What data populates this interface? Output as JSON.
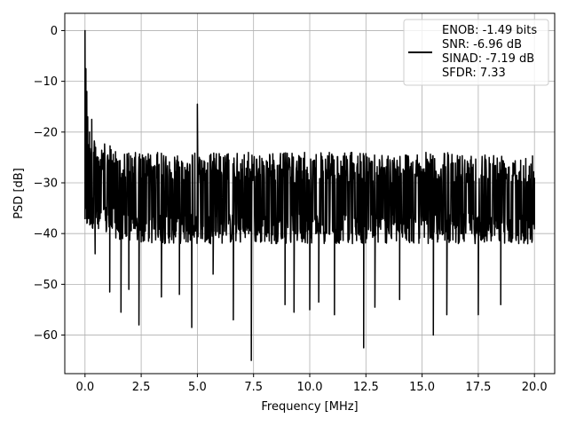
{
  "chart_data": {
    "type": "line",
    "xlabel": "Frequency [MHz]",
    "ylabel": "PSD [dB]",
    "xlim": [
      -0.9,
      20.9
    ],
    "ylim": [
      -67.6,
      3.4
    ],
    "xticks": [
      0.0,
      2.5,
      5.0,
      7.5,
      10.0,
      12.5,
      15.0,
      17.5,
      20.0
    ],
    "xtick_labels": [
      "0.0",
      "2.5",
      "5.0",
      "7.5",
      "10.0",
      "12.5",
      "15.0",
      "17.5",
      "20.0"
    ],
    "yticks": [
      0,
      -10,
      -20,
      -30,
      -40,
      -50,
      -60
    ],
    "ytick_labels": [
      "0",
      "−10",
      "−20",
      "−30",
      "−40",
      "−50",
      "−60"
    ],
    "grid": true,
    "legend_position": "top-right",
    "legend_lines": [
      "ENOB: -1.49 bits",
      "SNR: -6.96 dB",
      "SINAD: -7.19 dB",
      "SFDR: 7.33"
    ],
    "line_color": "#000000",
    "series": [
      {
        "noise_floor_db": -32,
        "noise_low_db": -42,
        "noise_high_db": -24,
        "x_start": 0.0,
        "x_end": 20.0,
        "points": [
          [
            0.0,
            0.0
          ],
          [
            0.02,
            -25.5
          ],
          [
            0.04,
            -7.5
          ],
          [
            0.06,
            -18.5
          ],
          [
            0.08,
            -12.0
          ],
          [
            0.1,
            -24.0
          ],
          [
            0.12,
            -17.0
          ],
          [
            0.16,
            -22.5
          ],
          [
            0.2,
            -20.0
          ],
          [
            0.25,
            -38.0
          ],
          [
            0.3,
            -17.5
          ],
          [
            0.35,
            -33.0
          ],
          [
            0.4,
            -25.0
          ],
          [
            0.45,
            -44.0
          ],
          [
            0.6,
            -39.0
          ],
          [
            1.1,
            -51.5
          ],
          [
            1.6,
            -55.5
          ],
          [
            1.95,
            -51.0
          ],
          [
            2.4,
            -58.0
          ],
          [
            3.4,
            -52.5
          ],
          [
            4.2,
            -52.0
          ],
          [
            4.75,
            -58.5
          ],
          [
            5.0,
            -14.5
          ],
          [
            5.05,
            -30.0
          ],
          [
            5.7,
            -48.0
          ],
          [
            6.6,
            -57.0
          ],
          [
            7.4,
            -65.0
          ],
          [
            8.9,
            -54.0
          ],
          [
            9.3,
            -55.5
          ],
          [
            10.0,
            -55.0
          ],
          [
            10.4,
            -53.5
          ],
          [
            11.1,
            -56.0
          ],
          [
            12.4,
            -62.5
          ],
          [
            12.9,
            -54.5
          ],
          [
            14.0,
            -53.0
          ],
          [
            15.5,
            -60.0
          ],
          [
            16.1,
            -56.0
          ],
          [
            17.5,
            -56.0
          ],
          [
            18.5,
            -54.0
          ],
          [
            19.7,
            -42.0
          ],
          [
            20.0,
            -29.0
          ]
        ]
      }
    ]
  }
}
